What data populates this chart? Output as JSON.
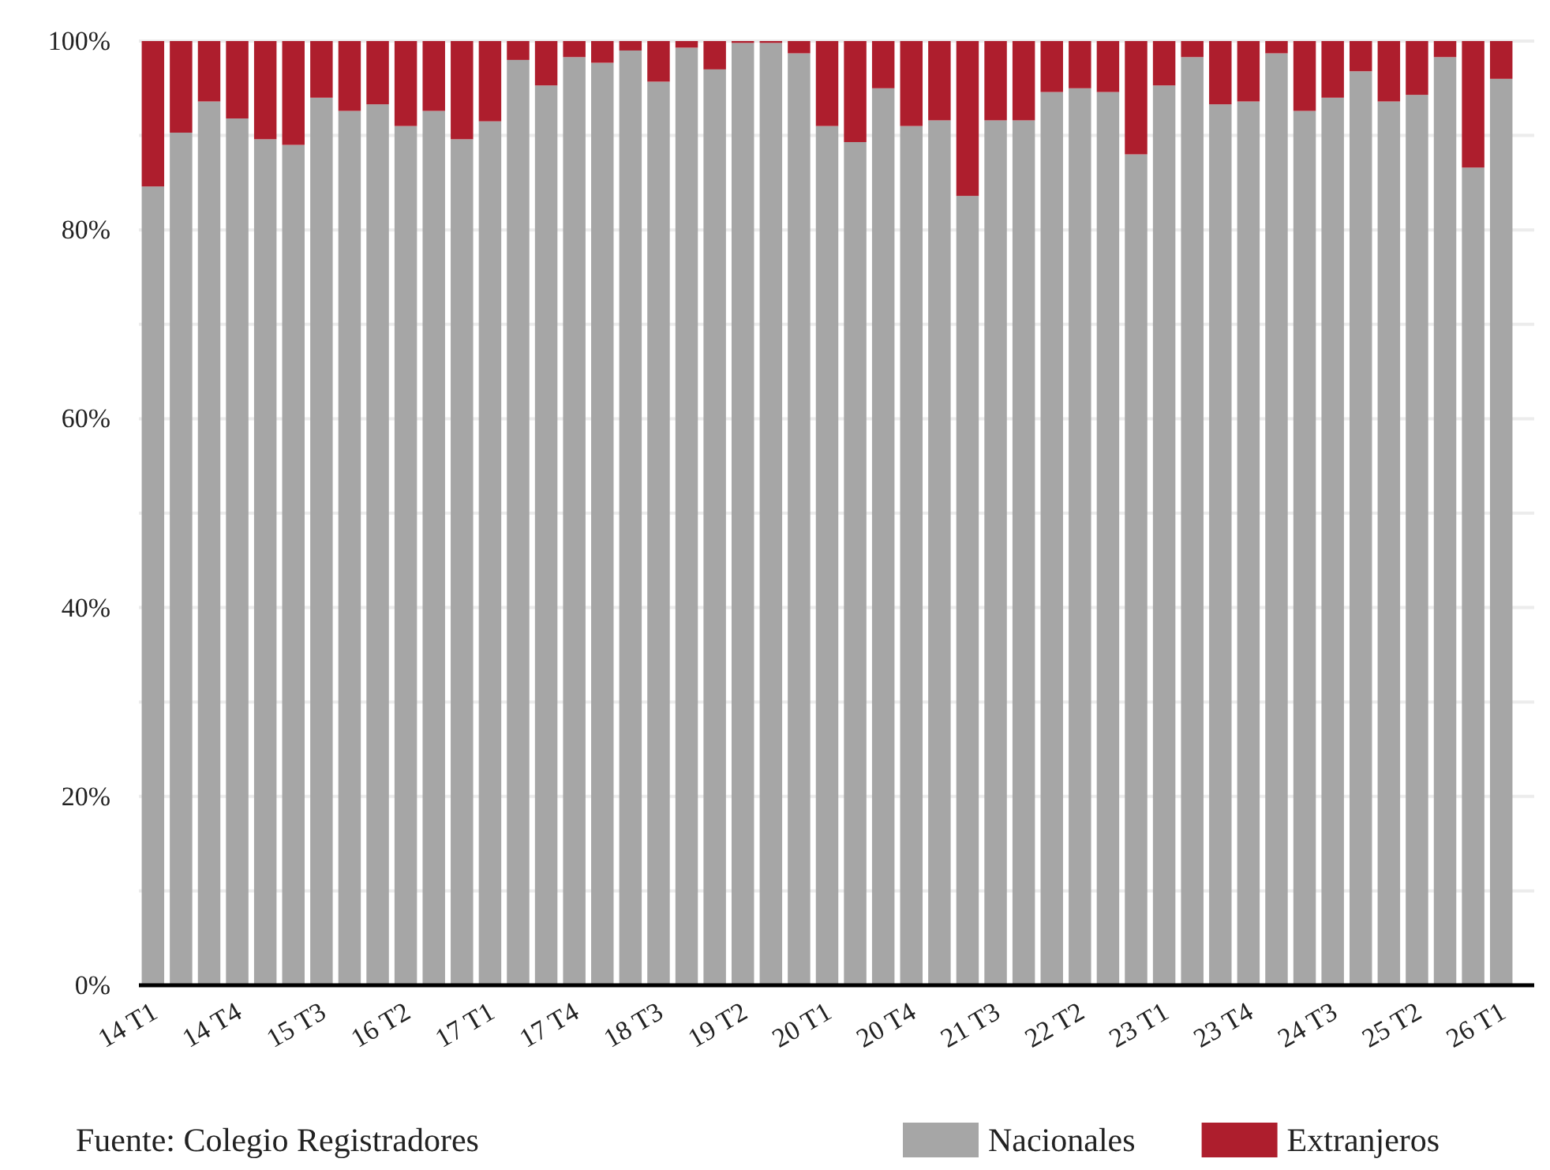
{
  "chart_data": {
    "type": "bar",
    "stacked": true,
    "categories": [
      "14 T1",
      null,
      null,
      "14 T4",
      null,
      null,
      "15 T3",
      null,
      null,
      "16 T2",
      null,
      null,
      "17 T1",
      null,
      null,
      "17 T4",
      null,
      null,
      "18 T3",
      null,
      null,
      "19 T2",
      null,
      null,
      "20 T1",
      null,
      null,
      "20 T4",
      null,
      null,
      "21 T3",
      null,
      null,
      "22 T2",
      null,
      null,
      "23 T1",
      null,
      null,
      "23 T4",
      null,
      null,
      "24 T3",
      null,
      null,
      "25 T2",
      null,
      null,
      "26 T1"
    ],
    "series": [
      {
        "name": "Nacionales",
        "color": "#a6a6a6",
        "values": [
          84.6,
          90.3,
          93.6,
          91.8,
          89.6,
          89.0,
          94.0,
          92.6,
          93.3,
          91.0,
          92.6,
          89.6,
          91.5,
          98.0,
          95.3,
          98.3,
          97.7,
          99.0,
          95.7,
          99.3,
          97.0,
          99.8,
          99.8,
          98.7,
          91.0,
          89.3,
          95.0,
          91.0,
          91.6,
          83.6,
          91.6,
          91.6,
          94.6,
          95.0,
          94.6,
          88.0,
          95.3,
          98.3,
          93.3,
          93.6,
          98.7,
          92.6,
          94.0,
          96.8,
          93.6,
          94.3,
          98.3,
          86.6,
          96.0
        ]
      },
      {
        "name": "Extranjeros",
        "color": "#ae1e2d",
        "values": [
          15.4,
          9.7,
          6.4,
          8.2,
          10.4,
          11.0,
          6.0,
          7.4,
          6.7,
          9.0,
          7.4,
          10.4,
          8.5,
          2.0,
          4.7,
          1.7,
          2.3,
          1.0,
          4.3,
          0.7,
          3.0,
          0.2,
          0.2,
          1.3,
          9.0,
          10.7,
          5.0,
          9.0,
          8.4,
          16.4,
          8.4,
          8.4,
          5.4,
          5.0,
          5.4,
          12.0,
          4.7,
          1.7,
          6.7,
          6.4,
          1.3,
          7.4,
          6.0,
          3.2,
          6.4,
          5.7,
          1.7,
          13.4,
          4.0
        ]
      }
    ],
    "ylim": [
      0,
      100
    ],
    "yticks": [
      {
        "value": 0,
        "label": "0%"
      },
      {
        "value": 10,
        "label": null
      },
      {
        "value": 20,
        "label": "20%"
      },
      {
        "value": 30,
        "label": null
      },
      {
        "value": 40,
        "label": "40%"
      },
      {
        "value": 50,
        "label": null
      },
      {
        "value": 60,
        "label": "60%"
      },
      {
        "value": 70,
        "label": null
      },
      {
        "value": 80,
        "label": "80%"
      },
      {
        "value": 90,
        "label": null
      },
      {
        "value": 100,
        "label": "100%"
      }
    ],
    "grid": "y",
    "legend": "bottom right",
    "annotations": [
      "Fuente: Colegio Registradores"
    ]
  }
}
